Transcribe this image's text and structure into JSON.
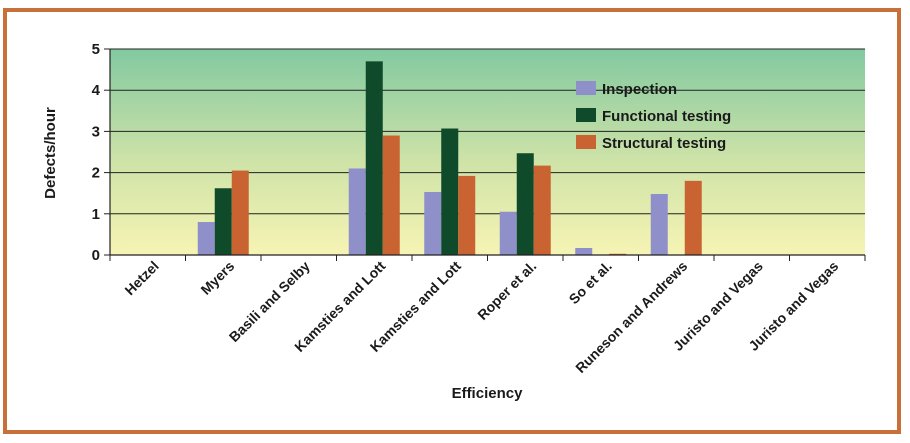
{
  "chart_data": {
    "type": "bar",
    "title": "",
    "xlabel": "Efficiency",
    "ylabel": "Defects/hour",
    "ylim": [
      0,
      5
    ],
    "yticks": [
      "0",
      "1",
      "2",
      "3",
      "4",
      "5"
    ],
    "grid": true,
    "legend_position": "top-right",
    "categories": [
      "Hetzel",
      "Myers",
      "Basili and Selby",
      "Kamsties and Lott",
      "Kamsties and Lott",
      "Roper et al.",
      "So et al.",
      "Runeson and Andrews",
      "Juristo and Vegas",
      "Juristo and Vegas"
    ],
    "series": [
      {
        "name": "Inspection",
        "color": "#8f8fca",
        "values": [
          null,
          0.8,
          null,
          2.1,
          1.53,
          1.05,
          0.17,
          1.48,
          null,
          null
        ]
      },
      {
        "name": "Functional testing",
        "color": "#0f4a2a",
        "values": [
          null,
          1.62,
          null,
          4.7,
          3.07,
          2.47,
          null,
          null,
          null,
          null
        ]
      },
      {
        "name": "Structural testing",
        "color": "#c96432",
        "values": [
          null,
          2.05,
          null,
          2.9,
          1.92,
          2.17,
          0.03,
          1.8,
          null,
          null
        ]
      }
    ]
  }
}
